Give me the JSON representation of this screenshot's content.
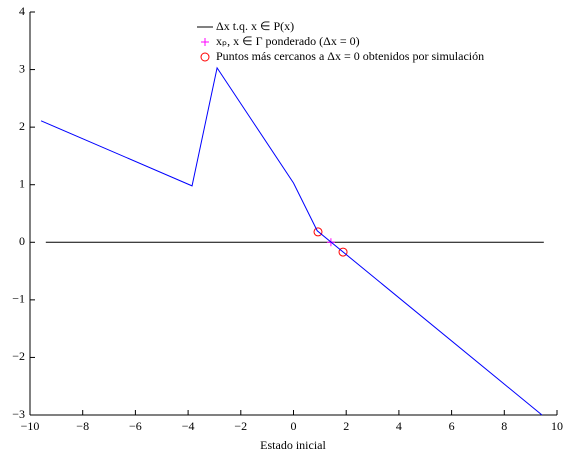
{
  "chart_data": {
    "type": "line",
    "xlabel": "Estado inicial",
    "xlim": [
      -10,
      10
    ],
    "xticks": [
      {
        "value": -10,
        "label": "−10"
      },
      {
        "value": -8,
        "label": "−8"
      },
      {
        "value": -6,
        "label": "−6"
      },
      {
        "value": -4,
        "label": "−4"
      },
      {
        "value": -2,
        "label": "−2"
      },
      0,
      2,
      4,
      6,
      8,
      10
    ],
    "ylim": [
      -3,
      4
    ],
    "yticks": [
      {
        "value": -3,
        "label": "−3"
      },
      {
        "value": -2,
        "label": "−2"
      },
      {
        "value": -1,
        "label": "−1"
      },
      0,
      1,
      2,
      3,
      4
    ],
    "legend": "top",
    "series": [
      {
        "name": "Δx t.q. x ∈ P(x)",
        "color": "#000000",
        "style": "line",
        "x": [
          -9.4,
          9.5
        ],
        "values": [
          0,
          0
        ]
      },
      {
        "name": "xₚ, x ∈ Γ ponderado (Δx = 0)",
        "color": "#ff00ff",
        "style": "plus",
        "x": [
          1.42
        ],
        "values": [
          0
        ]
      },
      {
        "name": "Puntos más cercanos a Δx = 0 obtenidos por simulación",
        "color": "#ff0000",
        "style": "circle",
        "x": [
          0.93,
          1.88
        ],
        "values": [
          0.18,
          -0.17
        ]
      },
      {
        "color": "#0000ff",
        "style": "line",
        "x": [
          -9.58,
          -3.85,
          -2.9,
          0,
          0.9,
          9.43
        ],
        "values": [
          2.11,
          0.98,
          3.03,
          1.03,
          0.2,
          -3
        ]
      }
    ]
  }
}
